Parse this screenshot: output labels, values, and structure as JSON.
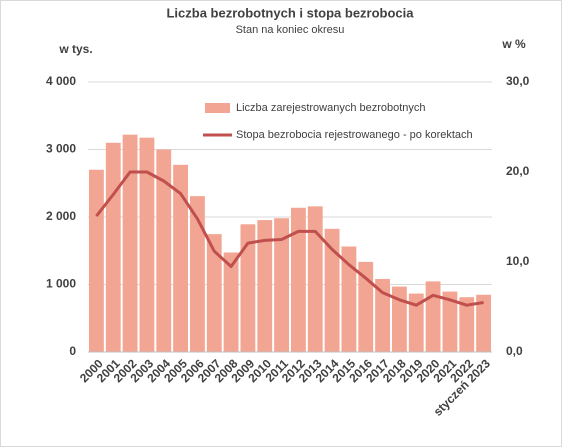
{
  "chart_data": {
    "type": "bar-line",
    "title": "Liczba bezrobotnych i stopa bezrobocia",
    "subtitle": "Stan na koniec okresu",
    "y_label": "w tys.",
    "y2_label": "w %",
    "categories": [
      "2000",
      "2001",
      "2002",
      "2003",
      "2004",
      "2005",
      "2006",
      "2007",
      "2008",
      "2009",
      "2010",
      "2011",
      "2012",
      "2013",
      "2014",
      "2015",
      "2016",
      "2017",
      "2018",
      "2019",
      "2020",
      "2021",
      "2022",
      "styczeń 2023"
    ],
    "series": [
      {
        "name": "Liczba zarejestrowanych bezrobotnych",
        "type": "bar",
        "color": "#f2a593",
        "values": [
          2700,
          3100,
          3220,
          3175,
          3000,
          2773,
          2309,
          1746,
          1474,
          1892,
          1954,
          1982,
          2137,
          2158,
          1825,
          1563,
          1335,
          1082,
          969,
          866,
          1046,
          895,
          812,
          848
        ]
      },
      {
        "name": "Stopa bezrobocia rejestrowanego - po korektach",
        "type": "line",
        "axis": "y2",
        "color": "#c0504d",
        "values": [
          15.1,
          17.5,
          20.0,
          20.0,
          19.0,
          17.6,
          14.8,
          11.2,
          9.5,
          12.1,
          12.4,
          12.5,
          13.4,
          13.4,
          11.4,
          9.7,
          8.2,
          6.6,
          5.8,
          5.2,
          6.3,
          5.8,
          5.2,
          5.5
        ]
      }
    ],
    "ylim": [
      0,
      4000
    ],
    "yticks": [
      0,
      {
        "value": 1000,
        "label": "1 000"
      },
      {
        "value": 2000,
        "label": "2 000"
      },
      {
        "value": 3000,
        "label": "3 000"
      },
      {
        "value": 4000,
        "label": "4 000"
      }
    ],
    "y2lim": [
      0,
      30
    ],
    "y2ticks": [
      {
        "value": 0,
        "label": "0,0"
      },
      {
        "value": 10,
        "label": "10,0"
      },
      {
        "value": 20,
        "label": "20,0"
      },
      {
        "value": 30,
        "label": "30,0"
      }
    ],
    "grid": true
  }
}
